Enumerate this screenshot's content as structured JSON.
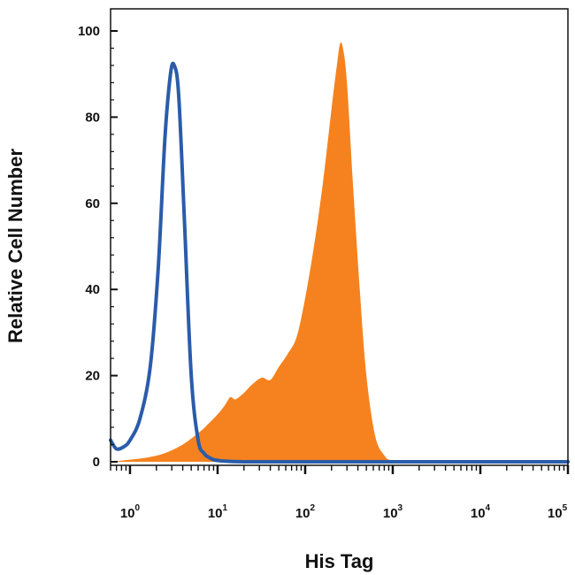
{
  "chart_data": {
    "type": "area",
    "title": "",
    "xlabel": "His Tag",
    "ylabel": "Relative Cell Number",
    "xscale": "log",
    "xlim": [
      0.6,
      100000
    ],
    "ylim": [
      0,
      100
    ],
    "grid": false,
    "legend": "none",
    "x_ticks": [
      {
        "base": "10",
        "exp": "0",
        "value": 1
      },
      {
        "base": "10",
        "exp": "1",
        "value": 10
      },
      {
        "base": "10",
        "exp": "2",
        "value": 100
      },
      {
        "base": "10",
        "exp": "3",
        "value": 1000
      },
      {
        "base": "10",
        "exp": "4",
        "value": 10000
      },
      {
        "base": "10",
        "exp": "5",
        "value": 100000
      }
    ],
    "y_ticks": [
      {
        "label": "0",
        "value": 0
      },
      {
        "label": "20",
        "value": 20
      },
      {
        "label": "40",
        "value": 40
      },
      {
        "label": "60",
        "value": 60
      },
      {
        "label": "80",
        "value": 80
      },
      {
        "label": "100",
        "value": 100
      }
    ],
    "series": [
      {
        "style": "filled",
        "color": "#F5821F",
        "x": [
          0.6,
          1.0,
          1.6,
          2.5,
          4.0,
          6.3,
          8.0,
          10.0,
          12.0,
          14.0,
          16.0,
          20.0,
          25.0,
          32.0,
          40.0,
          50.0,
          63.0,
          80.0,
          100,
          126,
          160,
          200,
          230,
          250,
          270,
          300,
          350,
          420,
          500,
          630,
          800,
          1000,
          2000,
          10000,
          100000
        ],
        "y": [
          0,
          0.5,
          1,
          2,
          4,
          7,
          9,
          11,
          13,
          15,
          14.5,
          16,
          18,
          19.5,
          19,
          22,
          25,
          29,
          38,
          50,
          65,
          82,
          92,
          97,
          96,
          88,
          65,
          40,
          20,
          6,
          1.5,
          0.3,
          0,
          0,
          0
        ]
      },
      {
        "style": "line",
        "color": "#2A5CAA",
        "x": [
          0.6,
          0.7,
          0.85,
          1.0,
          1.3,
          1.7,
          2.1,
          2.5,
          2.9,
          3.2,
          3.6,
          4.2,
          5.0,
          6.0,
          7.0,
          8.0,
          10.0,
          20.0,
          100,
          1000,
          10000,
          100000
        ],
        "y": [
          5,
          3,
          3.5,
          5,
          10,
          22,
          45,
          75,
          90,
          92,
          85,
          55,
          20,
          5,
          2,
          1,
          0.3,
          0,
          0,
          0,
          0,
          0
        ]
      }
    ]
  }
}
